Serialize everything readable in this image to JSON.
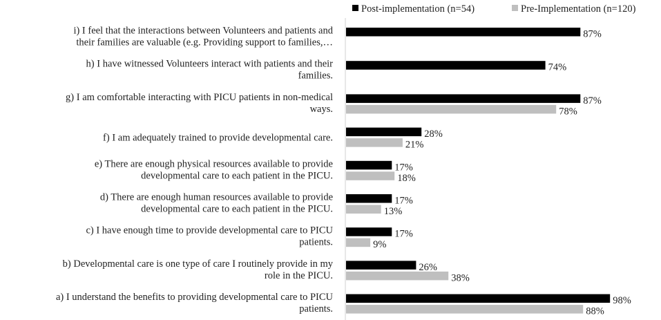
{
  "chart_data": {
    "type": "bar",
    "orientation": "horizontal",
    "categories": [
      [
        "i) I feel that the interactions between Volunteers and patients and",
        "their families are valuable (e.g. Providing support to families,…"
      ],
      [
        "h) I have witnessed Volunteers interact with patients and their",
        "families."
      ],
      [
        "g) I am comfortable interacting with PICU patients in non-medical",
        "ways."
      ],
      [
        "f) I am adequately trained to provide developmental care."
      ],
      [
        "e) There are enough physical resources available to provide",
        "developmental care to each patient in the PICU."
      ],
      [
        "d) There are enough human resources available to provide",
        "developmental care to each patient in the PICU."
      ],
      [
        "c) I have enough time to provide developmental care to PICU",
        "patients."
      ],
      [
        "b) Developmental care is one type of care I routinely provide in my",
        "role in the PICU."
      ],
      [
        "a) I understand the benefits to providing developmental care to PICU",
        "patients."
      ]
    ],
    "series": [
      {
        "name": "Post-implementation (n=54)",
        "color": "#000000",
        "values": [
          87,
          74,
          87,
          28,
          17,
          17,
          17,
          26,
          98
        ],
        "labels": [
          "87%",
          "74%",
          "87%",
          "28%",
          "17%",
          "17%",
          "17%",
          "26%",
          "98%"
        ]
      },
      {
        "name": "Pre-Implementation (n=120)",
        "color": "#bfbfbf",
        "values": [
          null,
          null,
          78,
          21,
          18,
          13,
          9,
          38,
          88
        ],
        "labels": [
          "",
          "",
          "78%",
          "21%",
          "18%",
          "13%",
          "9%",
          "38%",
          "88%"
        ]
      }
    ],
    "xlim": [
      0,
      100
    ],
    "grid": false,
    "legend": "top-right"
  }
}
